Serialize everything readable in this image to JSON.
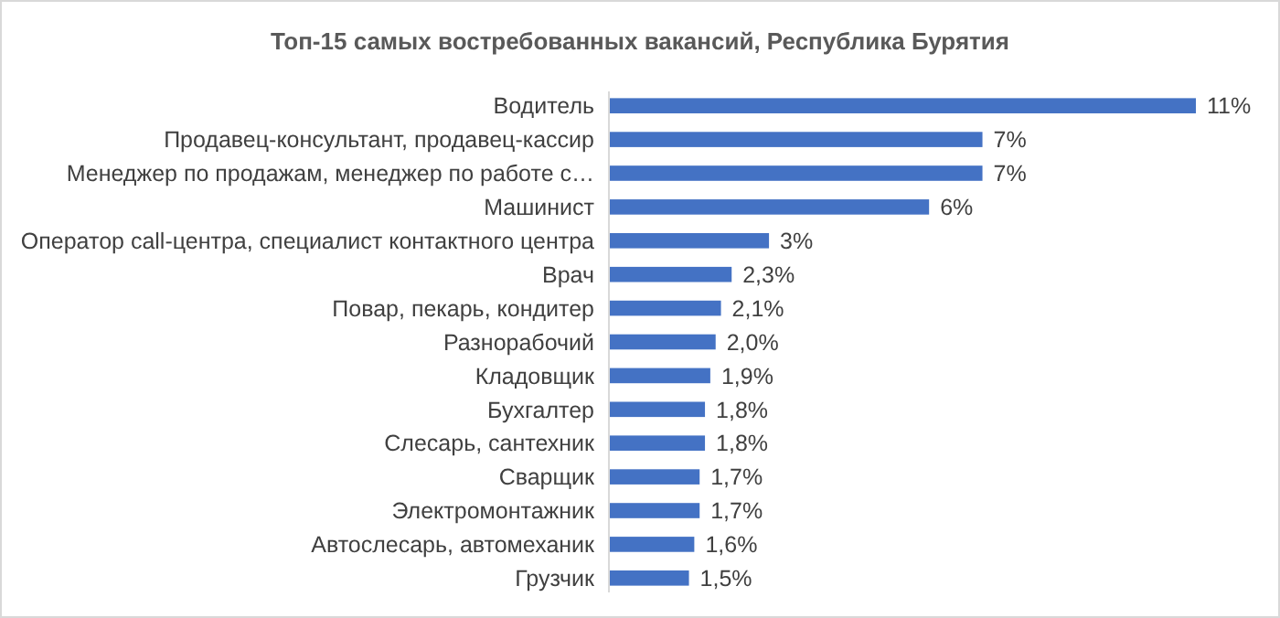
{
  "chart_data": {
    "type": "bar",
    "orientation": "horizontal",
    "title": "Топ-15 самых востребованных вакансий, Республика Бурятия",
    "categories": [
      "Водитель",
      "Продавец-консультант, продавец-кассир",
      "Менеджер по продажам, менеджер по работе с…",
      "Машинист",
      "Оператор call-центра, специалист контактного центра",
      "Врач",
      "Повар, пекарь, кондитер",
      "Разнорабочий",
      "Кладовщик",
      "Бухгалтер",
      "Слесарь, сантехник",
      "Сварщик",
      "Электромонтажник",
      "Автослесарь, автомеханик",
      "Грузчик"
    ],
    "values": [
      11,
      7,
      7,
      6,
      3,
      2.3,
      2.1,
      2.0,
      1.9,
      1.8,
      1.8,
      1.7,
      1.7,
      1.6,
      1.5
    ],
    "value_labels": [
      "11%",
      "7%",
      "7%",
      "6%",
      "3%",
      "2,3%",
      "2,1%",
      "2,0%",
      "1,9%",
      "1,8%",
      "1,8%",
      "1,7%",
      "1,7%",
      "1,6%",
      "1,5%"
    ],
    "color": "#4472c4"
  }
}
